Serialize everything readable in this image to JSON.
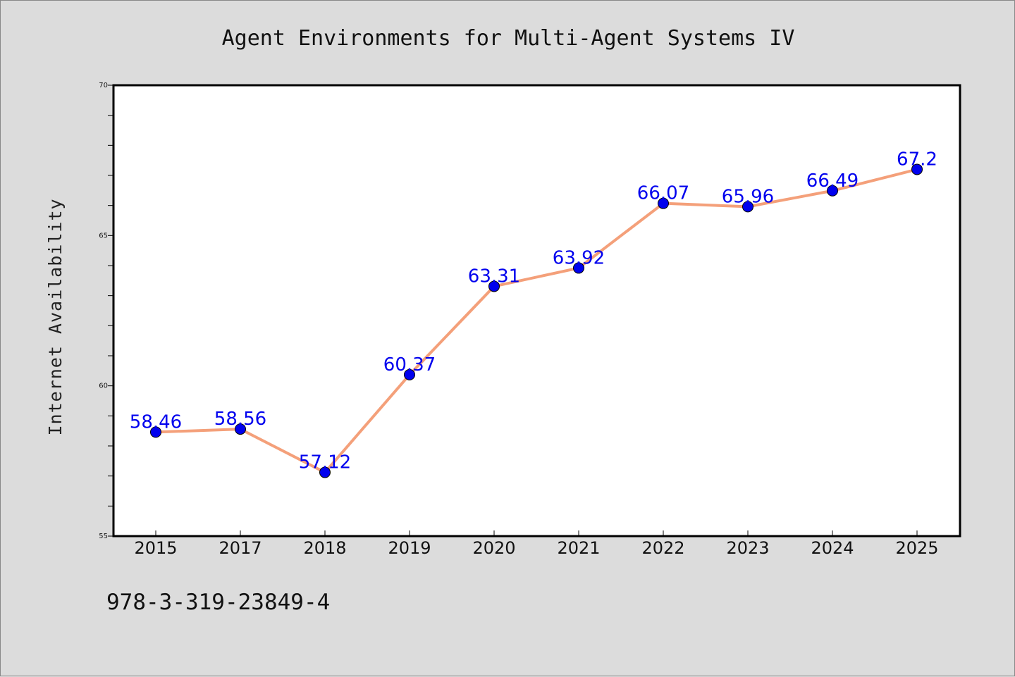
{
  "chart_data": {
    "type": "line",
    "title": "Agent Environments for Multi-Agent Systems IV",
    "xlabel": "",
    "ylabel": "Internet Availability",
    "categories": [
      "2015",
      "2017",
      "2018",
      "2019",
      "2020",
      "2021",
      "2022",
      "2023",
      "2024",
      "2025"
    ],
    "series": [
      {
        "values": [
          58.46,
          58.56,
          57.12,
          60.37,
          63.31,
          63.92,
          66.07,
          65.96,
          66.49,
          67.2
        ],
        "labels": [
          "58.46",
          "58.56",
          "57.12",
          "60.37",
          "63.31",
          "63.92",
          "66.07",
          "65.96",
          "66.49",
          "67.2"
        ],
        "line_color": "#f4a07a",
        "marker_color": "#0000ee"
      }
    ],
    "ylim": [
      55,
      70
    ],
    "yticks": [
      "55",
      "60",
      "65",
      "70"
    ],
    "grid": false,
    "legend": "none"
  },
  "footer": {
    "isbn": "978-3-319-23849-4"
  },
  "colors": {
    "background": "#dcdcdc",
    "plot_background": "#ffffff",
    "data_label": "#0000ee"
  }
}
